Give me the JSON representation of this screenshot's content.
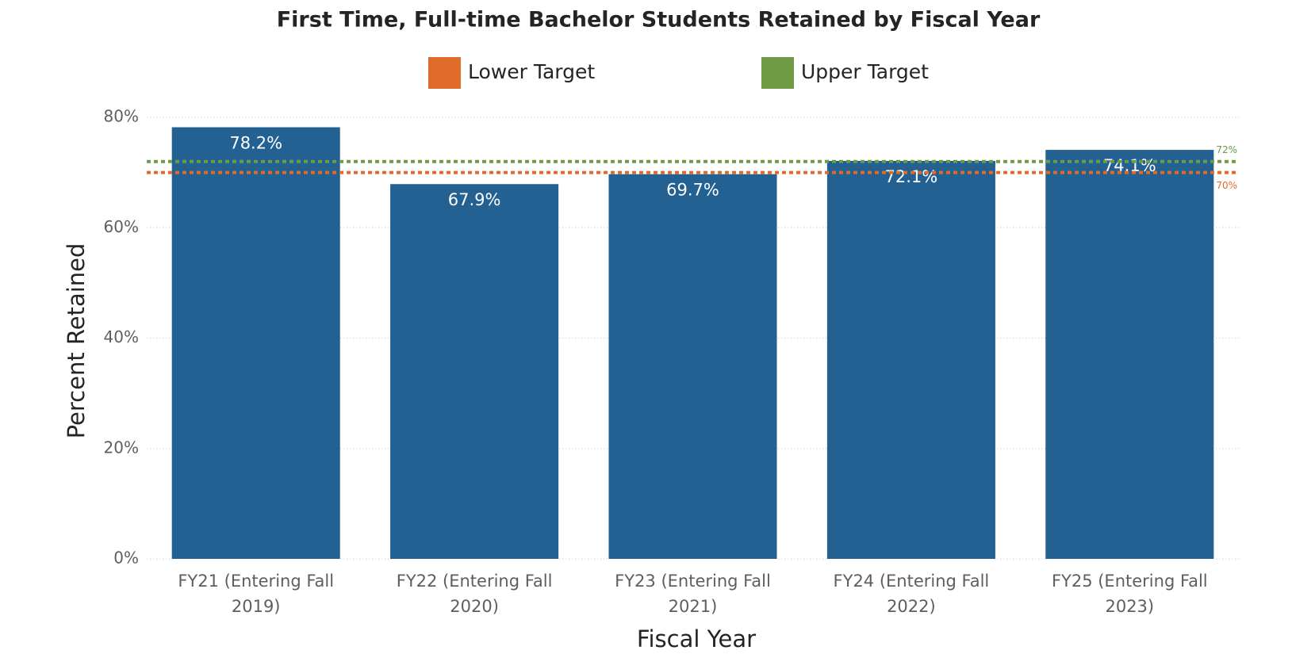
{
  "chart_data": {
    "type": "bar",
    "title": "First Time, Full-time Bachelor Students Retained by Fiscal Year",
    "x_label": "Fiscal Year",
    "y_label": "Percent Retained",
    "categories": [
      "FY21 (Entering Fall 2019)",
      "FY22 (Entering Fall 2020)",
      "FY23 (Entering Fall 2021)",
      "FY24 (Entering Fall 2022)",
      "FY25 (Entering Fall 2023)"
    ],
    "values": [
      78.2,
      67.9,
      69.7,
      72.1,
      74.1
    ],
    "value_labels": [
      "78.2%",
      "67.9%",
      "69.7%",
      "72.1%",
      "74.1%"
    ],
    "color": "#236192",
    "ylim": [
      0,
      80
    ],
    "yticks": [
      {
        "value": 0,
        "label": "0%"
      },
      {
        "value": 20,
        "label": "20%"
      },
      {
        "value": 40,
        "label": "40%"
      },
      {
        "value": 60,
        "label": "60%"
      },
      {
        "value": 80,
        "label": "80%"
      }
    ],
    "grid": true,
    "reference_lines": [
      {
        "name": "Lower Target",
        "value": 70,
        "label": "70%",
        "color": "#e06c2c"
      },
      {
        "name": "Upper Target",
        "value": 72,
        "label": "72%",
        "color": "#6e9a45"
      }
    ]
  }
}
